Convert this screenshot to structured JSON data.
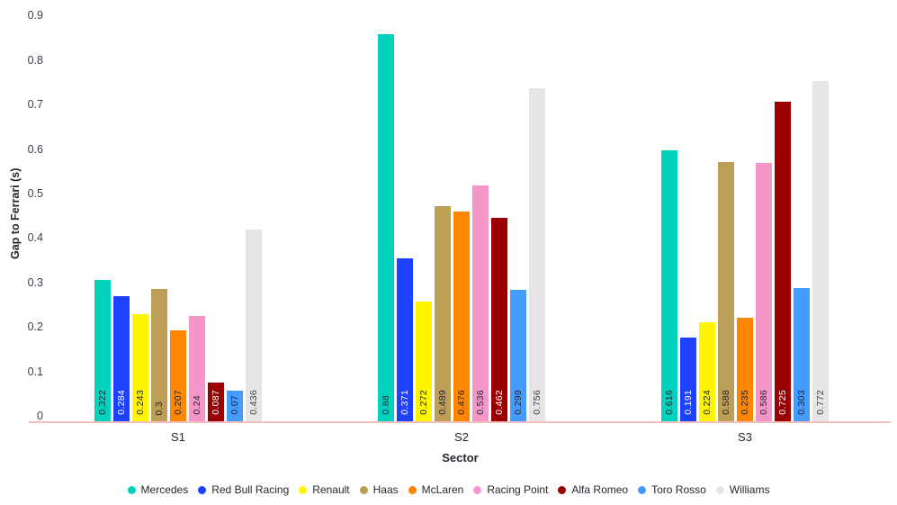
{
  "chart_data": {
    "type": "bar",
    "title": "",
    "xlabel": "Sector",
    "ylabel": "Gap to Ferrari (s)",
    "categories": [
      "S1",
      "S2",
      "S3"
    ],
    "ylim": [
      0,
      0.9
    ],
    "ytick_labels": [
      "0",
      "0.1",
      "0.2",
      "0.3",
      "0.4",
      "0.5",
      "0.6",
      "0.7",
      "0.8",
      "0.9"
    ],
    "grid": false,
    "legend_position": "bottom",
    "bar_value_labels": true,
    "series": [
      {
        "name": "Mercedes",
        "color": "#00D2BE",
        "label_color": "#23272F",
        "values": [
          0.322,
          0.88,
          0.616
        ]
      },
      {
        "name": "Red Bull Racing",
        "color": "#1E41FF",
        "label_color": "#FFFFFF",
        "values": [
          0.284,
          0.371,
          0.191
        ]
      },
      {
        "name": "Renault",
        "color": "#FFF500",
        "label_color": "#23272F",
        "values": [
          0.243,
          0.272,
          0.224
        ]
      },
      {
        "name": "Haas",
        "color": "#BD9E57",
        "label_color": "#23272F",
        "values": [
          0.3,
          0.489,
          0.588
        ]
      },
      {
        "name": "McLaren",
        "color": "#FF8700",
        "label_color": "#23272F",
        "values": [
          0.207,
          0.476,
          0.235
        ]
      },
      {
        "name": "Racing Point",
        "color": "#F596C8",
        "label_color": "#23272F",
        "values": [
          0.24,
          0.536,
          0.586
        ]
      },
      {
        "name": "Alfa Romeo",
        "color": "#9B0000",
        "label_color": "#FFFFFF",
        "values": [
          0.087,
          0.462,
          0.725
        ]
      },
      {
        "name": "Toro Rosso",
        "color": "#469BFF",
        "label_color": "#23272F",
        "values": [
          0.07,
          0.299,
          0.303
        ]
      },
      {
        "name": "Williams",
        "color": "#E5E5E5",
        "label_color": "#3F434B",
        "values": [
          0.436,
          0.756,
          0.772
        ]
      }
    ],
    "style": {
      "baseline_color": "#F2C0BF",
      "axis_text_color": "#23272F",
      "tick_label_color": "#3C4048"
    }
  }
}
